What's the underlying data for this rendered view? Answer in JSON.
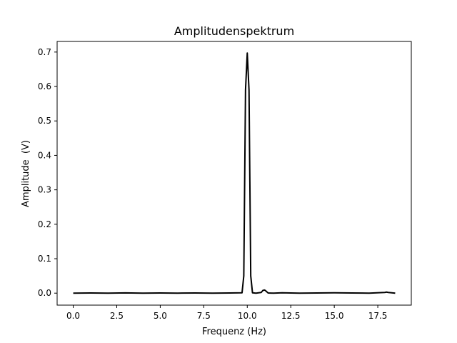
{
  "chart_data": {
    "type": "line",
    "title": "Amplitudenspektrum",
    "xlabel": "Frequenz (Hz)",
    "ylabel": "Amplitude  (V)",
    "xlim": [
      -0.925,
      19.425
    ],
    "ylim": [
      -0.0348,
      0.7308
    ],
    "xticks": [
      0.0,
      2.5,
      5.0,
      7.5,
      10.0,
      12.5,
      15.0,
      17.5
    ],
    "xtick_labels": [
      "0.0",
      "2.5",
      "5.0",
      "7.5",
      "10.0",
      "12.5",
      "15.0",
      "17.5"
    ],
    "yticks": [
      0.0,
      0.1,
      0.2,
      0.3,
      0.4,
      0.5,
      0.6,
      0.7
    ],
    "ytick_labels": [
      "0.0",
      "0.1",
      "0.2",
      "0.3",
      "0.4",
      "0.5",
      "0.6",
      "0.7"
    ],
    "grid": false,
    "line_color": "#000000",
    "series": [
      {
        "x": [
          0.0,
          1.0,
          2.0,
          3.0,
          4.0,
          5.0,
          6.0,
          7.0,
          8.0,
          9.0,
          9.7,
          9.8,
          9.9,
          10.0,
          10.1,
          10.2,
          10.3,
          10.5,
          10.8,
          10.9,
          11.0,
          11.1,
          11.2,
          11.5,
          12.0,
          13.0,
          14.0,
          15.0,
          16.0,
          17.0,
          17.9,
          18.0,
          18.1,
          18.5
        ],
        "y": [
          0.0,
          0.0005,
          0.0,
          0.0008,
          0.0,
          0.0005,
          0.0,
          0.0005,
          0.0,
          0.0005,
          0.001,
          0.05,
          0.59,
          0.697,
          0.59,
          0.05,
          0.001,
          0.0,
          0.002,
          0.008,
          0.009,
          0.005,
          0.0005,
          0.0,
          0.001,
          0.0,
          0.0005,
          0.001,
          0.0005,
          0.0,
          0.002,
          0.003,
          0.002,
          0.0
        ]
      }
    ]
  }
}
